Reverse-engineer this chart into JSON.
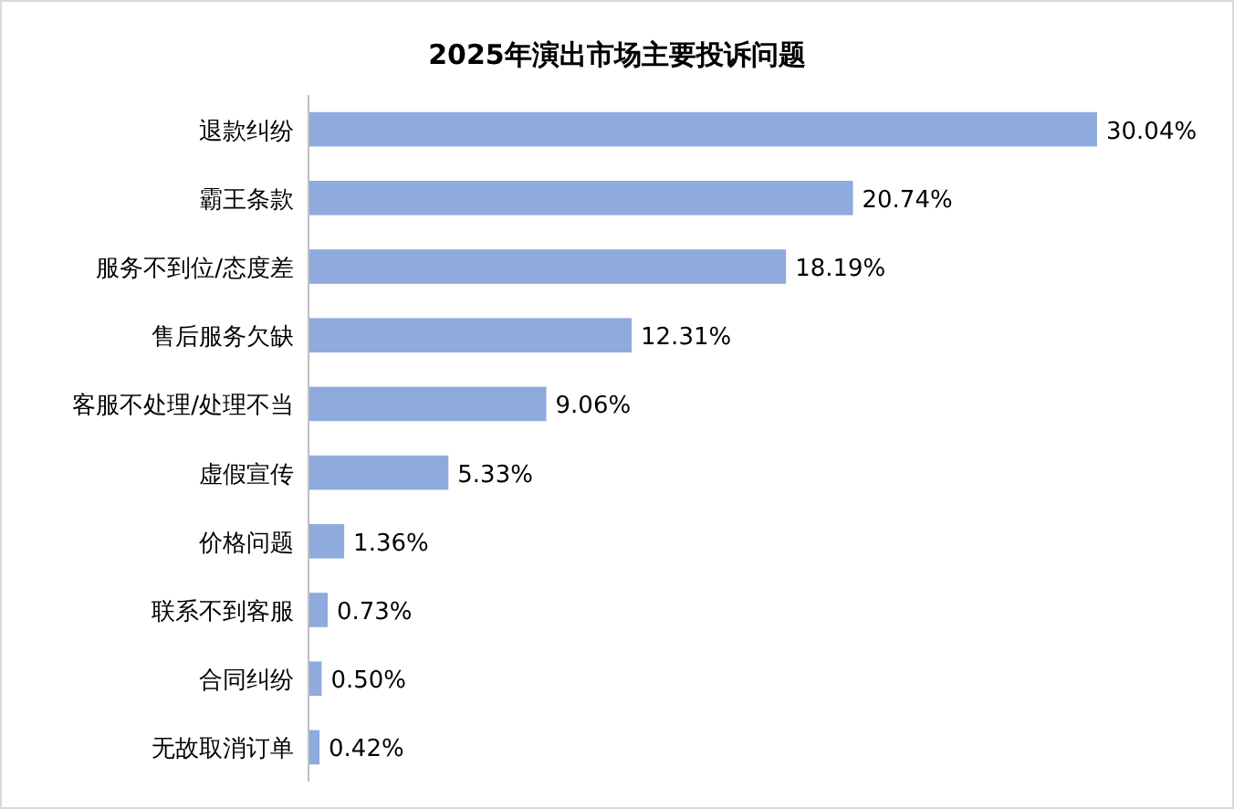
{
  "chart_data": {
    "type": "bar",
    "orientation": "horizontal",
    "title": "2025年演出市场主要投诉问题",
    "categories": [
      "退款纠纷",
      "霸王条款",
      "服务不到位/态度差",
      "售后服务欠缺",
      "客服不处理/处理不当",
      "虚假宣传",
      "价格问题",
      "联系不到客服",
      "合同纠纷",
      "无故取消订单"
    ],
    "values": [
      30.04,
      20.74,
      18.19,
      12.31,
      9.06,
      5.33,
      1.36,
      0.73,
      0.5,
      0.42
    ],
    "value_labels": [
      "30.04%",
      "20.74%",
      "18.19%",
      "12.31%",
      "9.06%",
      "5.33%",
      "1.36%",
      "0.73%",
      "0.50%",
      "0.42%"
    ],
    "color": "#8faadc"
  }
}
